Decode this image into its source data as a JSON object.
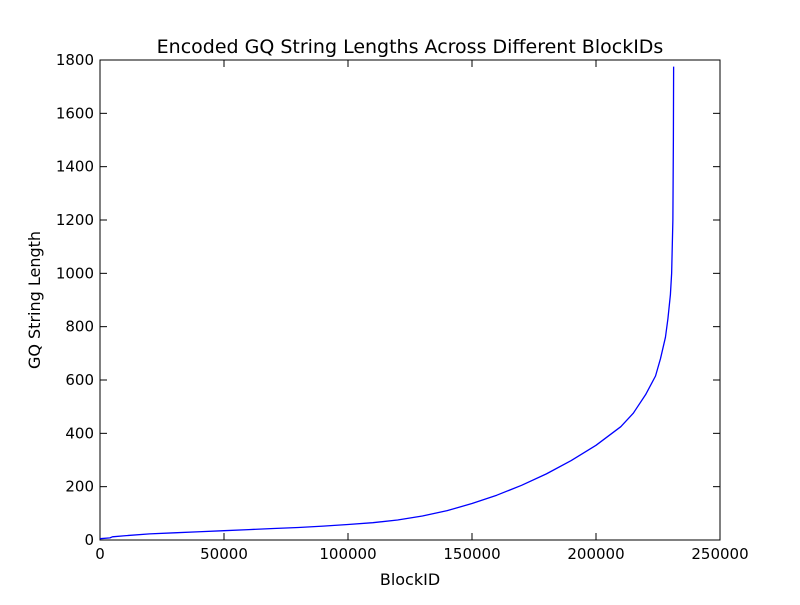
{
  "chart_data": {
    "type": "line",
    "title": "Encoded GQ String Lengths Across Different BlockIDs",
    "xlabel": "BlockID",
    "ylabel": "GQ String Length",
    "xlim": [
      0,
      250000
    ],
    "ylim": [
      0,
      1800
    ],
    "xticks": [
      0,
      50000,
      100000,
      150000,
      200000,
      250000
    ],
    "yticks": [
      0,
      200,
      400,
      600,
      800,
      1000,
      1200,
      1400,
      1600,
      1800
    ],
    "grid": false,
    "colors": {
      "line": "#0000ff",
      "axes": "#000000",
      "background": "#ffffff"
    },
    "series": [
      {
        "x": [
          0,
          4000,
          5000,
          10000,
          20000,
          30000,
          40000,
          50000,
          60000,
          70000,
          80000,
          90000,
          100000,
          110000,
          120000,
          130000,
          140000,
          150000,
          160000,
          170000,
          180000,
          190000,
          200000,
          210000,
          215000,
          220000,
          224000,
          226000,
          228000,
          229000,
          230000,
          230500,
          231000,
          231200,
          231300
        ],
        "y": [
          5,
          8,
          12,
          16,
          23,
          27,
          31,
          35,
          39,
          43,
          47,
          52,
          58,
          65,
          75,
          90,
          110,
          137,
          168,
          205,
          248,
          298,
          355,
          425,
          475,
          545,
          615,
          680,
          760,
          830,
          920,
          1000,
          1200,
          1500,
          1775
        ]
      }
    ]
  }
}
